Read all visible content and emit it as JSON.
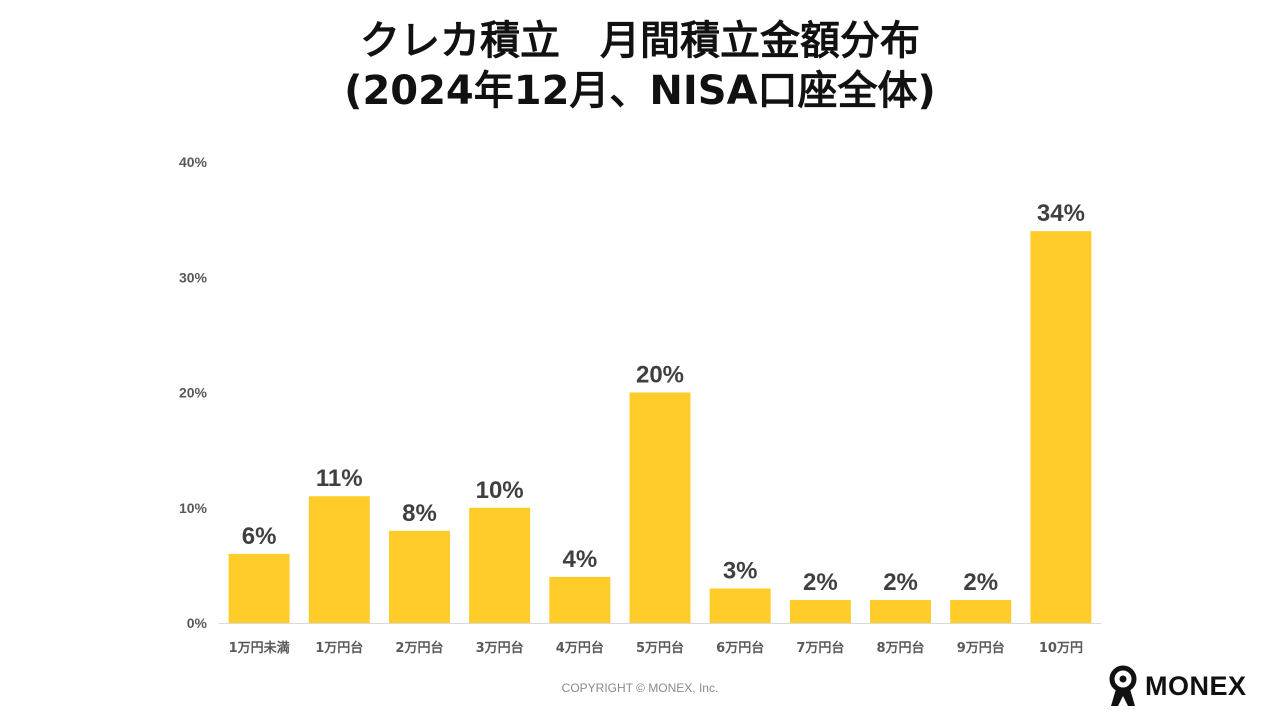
{
  "header": {
    "title_line1": "クレカ積立　月間積立金額分布",
    "title_line2": "(2024年12月、NISA口座全体)"
  },
  "footer": {
    "copyright": "COPYRIGHT © MONEX, Inc.",
    "logo_text": "MONEX",
    "logo_icon": "monex-mascot-icon"
  },
  "colors": {
    "bar": "#FFCC29",
    "axis_text": "#595959",
    "label_text": "#404040",
    "baseline": "#d9d9d9"
  },
  "chart_data": {
    "type": "bar",
    "title": "クレカ積立　月間積立金額分布 (2024年12月、NISA口座全体)",
    "categories": [
      "1万円未満",
      "1万円台",
      "2万円台",
      "3万円台",
      "4万円台",
      "5万円台",
      "6万円台",
      "7万円台",
      "8万円台",
      "9万円台",
      "10万円"
    ],
    "values": [
      6,
      11,
      8,
      10,
      4,
      20,
      3,
      2,
      2,
      2,
      34
    ],
    "value_labels": [
      "6%",
      "11%",
      "8%",
      "10%",
      "4%",
      "20%",
      "3%",
      "2%",
      "2%",
      "2%",
      "34%"
    ],
    "yticks": [
      0,
      10,
      20,
      30,
      40
    ],
    "ytick_labels": [
      "0%",
      "10%",
      "20%",
      "30%",
      "40%"
    ],
    "ylim": [
      0,
      40
    ],
    "xlabel": "",
    "ylabel": "",
    "grid": false,
    "legend": "none"
  }
}
